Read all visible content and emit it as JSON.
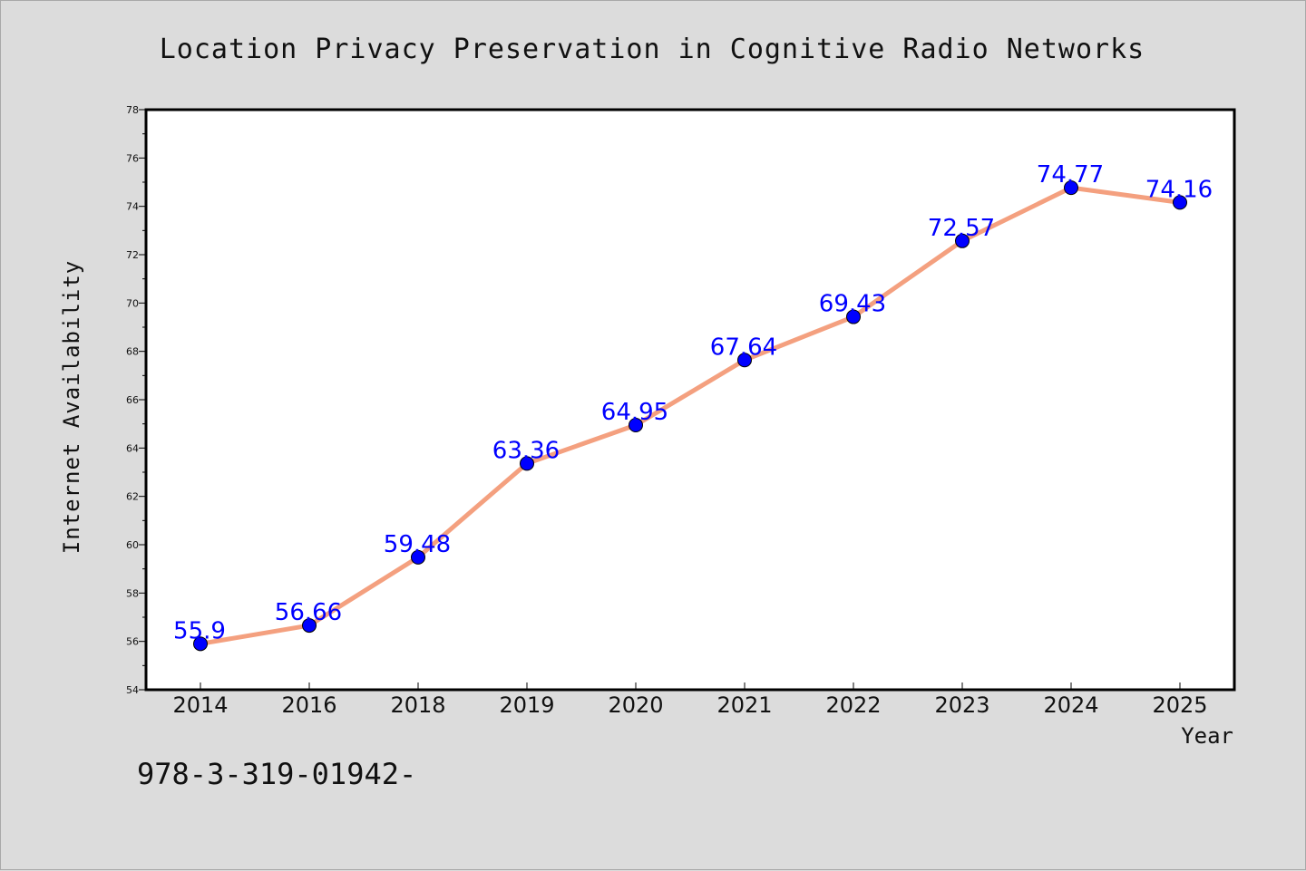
{
  "chart_data": {
    "type": "line",
    "title": "Location Privacy Preservation in Cognitive Radio Networks",
    "xlabel": "Year",
    "ylabel": "Internet Availability",
    "categories": [
      "2014",
      "2016",
      "2018",
      "2019",
      "2020",
      "2021",
      "2022",
      "2023",
      "2024",
      "2025"
    ],
    "values": [
      55.9,
      56.66,
      59.48,
      63.36,
      64.95,
      67.64,
      69.43,
      72.57,
      74.77,
      74.16
    ],
    "data_labels": [
      "55.9",
      "56.66",
      "59.48",
      "63.36",
      "64.95",
      "67.64",
      "69.43",
      "72.57",
      "74.77",
      "74.16"
    ],
    "ylim": [
      54,
      78
    ],
    "yticks": [
      "54",
      "56",
      "58",
      "60",
      "62",
      "64",
      "66",
      "68",
      "70",
      "72",
      "74",
      "76",
      "78"
    ],
    "grid": false,
    "line_color": "#f4a07f",
    "marker_color": "#0000ff",
    "label_color": "#0000ff",
    "background_color": "#dcdcdc",
    "plot_background_color": "#ffffff"
  },
  "footer": {
    "text": "978-3-319-01942-"
  }
}
